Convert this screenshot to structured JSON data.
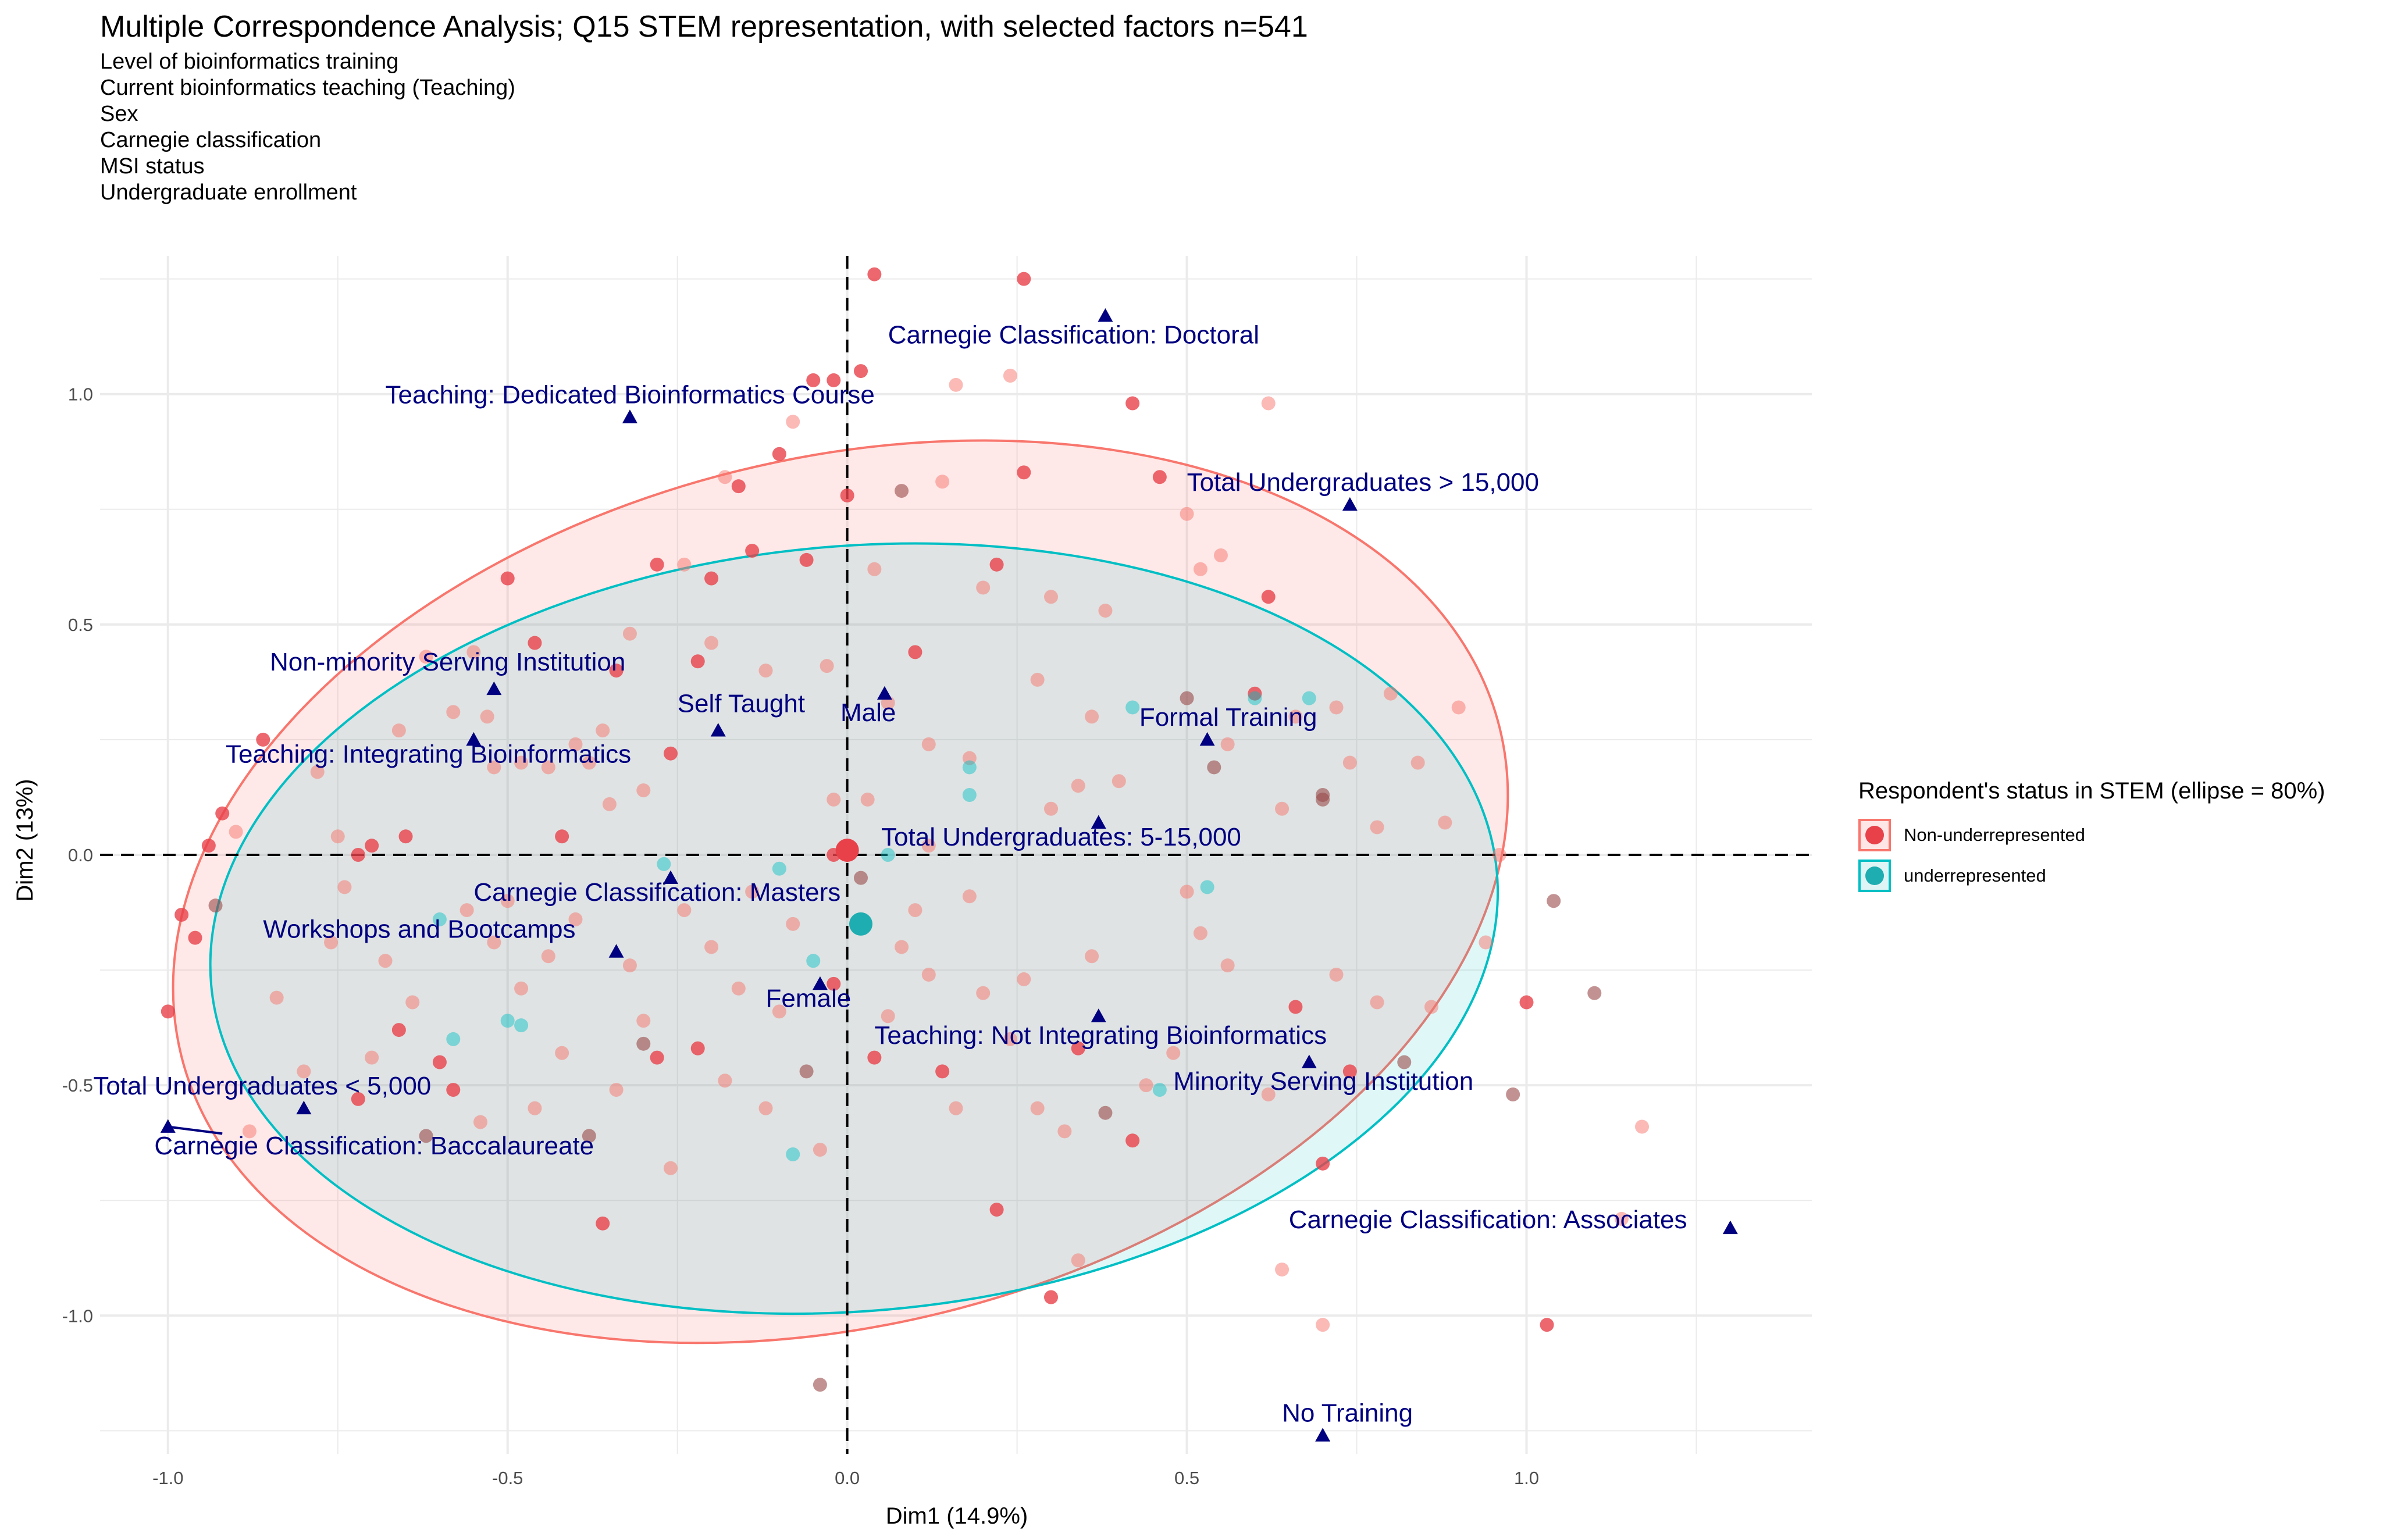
{
  "title": "Multiple Correspondence Analysis; Q15 STEM representation, with selected factors n=541",
  "subtitle_lines": [
    "Level of bioinformatics training",
    "Current bioinformatics teaching (Teaching)",
    "Sex",
    "Carnegie classification",
    "MSI status",
    "Undergraduate enrollment"
  ],
  "colors": {
    "non_underrepresented": "#F8766D",
    "underrepresented": "#00BFC4",
    "variable_points": "#000080",
    "non_underrepresented_point": "#E8414A",
    "underrepresented_point": "#1EADB0"
  },
  "chart_data": {
    "type": "scatter",
    "xlabel": "Dim1 (14.9%)",
    "ylabel": "Dim2 (13%)",
    "xlim": [
      -1.1,
      1.42
    ],
    "ylim": [
      -1.3,
      1.3
    ],
    "x_ticks": [
      -1.0,
      -0.5,
      0.0,
      0.5,
      1.0
    ],
    "x_tick_labels": [
      "-1.0",
      "-0.5",
      "0.0",
      "0.5",
      "1.0"
    ],
    "y_ticks": [
      -1.0,
      -0.5,
      0.0,
      0.5,
      1.0
    ],
    "y_tick_labels": [
      "-1.0",
      "-0.5",
      "0.0",
      "0.5",
      "1.0"
    ],
    "grid": true,
    "reference_lines": {
      "x": 0,
      "y": 0,
      "style": "dashed"
    },
    "legend": {
      "title": "Respondent's status in STEM (ellipse = 80%)",
      "position": "right",
      "entries": [
        "Non-underrepresented",
        "underrepresented"
      ]
    },
    "group_centroids": [
      {
        "group": "Non-underrepresented",
        "x": 0.0,
        "y": 0.01
      },
      {
        "group": "underrepresented",
        "x": 0.02,
        "y": -0.15
      }
    ],
    "ellipses": [
      {
        "group": "Non-underrepresented",
        "cx": -0.01,
        "cy": -0.08,
        "rx": 1.0,
        "ry": 0.94,
        "angle": -14
      },
      {
        "group": "underrepresented",
        "cx": 0.01,
        "cy": -0.16,
        "rx": 0.95,
        "ry": 0.83,
        "angle": -5
      }
    ],
    "variable_categories": [
      {
        "label": "Carnegie Classification: Doctoral",
        "x": 0.38,
        "y": 1.17,
        "lx": 0.06,
        "ly": 1.11,
        "anchor": "start"
      },
      {
        "label": "Teaching: Dedicated Bioinformatics Course",
        "x": -0.32,
        "y": 0.95,
        "lx": -0.68,
        "ly": 0.98,
        "anchor": "start"
      },
      {
        "label": "Total Undergraduates > 15,000",
        "x": 0.74,
        "y": 0.76,
        "lx": 0.5,
        "ly": 0.79,
        "anchor": "start"
      },
      {
        "label": "Non-minority Serving Institution",
        "x": -0.52,
        "y": 0.36,
        "lx": -0.85,
        "ly": 0.4,
        "anchor": "start"
      },
      {
        "label": "Self Taught",
        "x": -0.19,
        "y": 0.27,
        "lx": -0.25,
        "ly": 0.31,
        "anchor": "start"
      },
      {
        "label": "Male",
        "x": 0.055,
        "y": 0.35,
        "lx": -0.01,
        "ly": 0.29,
        "anchor": "start"
      },
      {
        "label": "Formal Training",
        "x": 0.53,
        "y": 0.25,
        "lx": 0.43,
        "ly": 0.28,
        "anchor": "start"
      },
      {
        "label": "Teaching: Integrating Bioinformatics",
        "x": -0.55,
        "y": 0.25,
        "lx": -0.915,
        "ly": 0.2,
        "anchor": "start"
      },
      {
        "label": "Total Undergraduates: 5-15,000",
        "x": 0.37,
        "y": 0.07,
        "lx": 0.05,
        "ly": 0.02,
        "anchor": "start"
      },
      {
        "label": "Carnegie Classification: Masters",
        "x": -0.26,
        "y": -0.05,
        "lx": -0.55,
        "ly": -0.1,
        "anchor": "start"
      },
      {
        "label": "Workshops and Bootcamps",
        "x": -0.34,
        "y": -0.21,
        "lx": -0.86,
        "ly": -0.18,
        "anchor": "start"
      },
      {
        "label": "Female",
        "x": -0.04,
        "y": -0.28,
        "lx": -0.12,
        "ly": -0.33,
        "anchor": "start"
      },
      {
        "label": "Teaching: Not Integrating Bioinformatics",
        "x": 0.37,
        "y": -0.35,
        "lx": 0.04,
        "ly": -0.41,
        "anchor": "start"
      },
      {
        "label": "Minority Serving Institution",
        "x": 0.68,
        "y": -0.45,
        "lx": 0.48,
        "ly": -0.51,
        "anchor": "start"
      },
      {
        "label": "Total Undergraduates < 5,000",
        "x": -1.0,
        "y": -0.59,
        "lx": -1.11,
        "ly": -0.52,
        "anchor": "start"
      },
      {
        "label": "Carnegie Classification: Baccalaureate",
        "x": -0.8,
        "y": -0.55,
        "lx": -1.02,
        "ly": -0.65,
        "anchor": "start"
      },
      {
        "label": "Carnegie Classification: Associates",
        "x": 1.3,
        "y": -0.81,
        "lx": 0.65,
        "ly": -0.81,
        "anchor": "start"
      },
      {
        "label": "No Training",
        "x": 0.7,
        "y": -1.26,
        "lx": 0.64,
        "ly": -1.23,
        "anchor": "start"
      }
    ],
    "individuals": [
      [
        -0.98,
        -0.13,
        1
      ],
      [
        -1.0,
        -0.34,
        1
      ],
      [
        -0.96,
        -0.18,
        1
      ],
      [
        -0.94,
        0.02,
        1
      ],
      [
        -0.92,
        0.09,
        1
      ],
      [
        -0.9,
        0.05,
        0
      ],
      [
        -0.86,
        0.25,
        1
      ],
      [
        -0.93,
        -0.11,
        2
      ],
      [
        -0.78,
        0.18,
        0
      ],
      [
        -0.75,
        0.04,
        0
      ],
      [
        -0.74,
        -0.07,
        0
      ],
      [
        -0.72,
        0.0,
        1
      ],
      [
        -0.7,
        0.02,
        1
      ],
      [
        -0.66,
        0.27,
        0
      ],
      [
        -0.65,
        0.04,
        1
      ],
      [
        -0.62,
        0.43,
        0
      ],
      [
        -0.6,
        -0.45,
        1
      ],
      [
        -0.58,
        0.31,
        0
      ],
      [
        -0.55,
        0.44,
        0
      ],
      [
        -0.53,
        0.3,
        0
      ],
      [
        -0.52,
        0.19,
        0
      ],
      [
        -0.5,
        0.6,
        1
      ],
      [
        -0.48,
        0.2,
        0
      ],
      [
        -0.5,
        -0.1,
        0
      ],
      [
        -0.46,
        0.46,
        1
      ],
      [
        -0.44,
        0.19,
        0
      ],
      [
        -0.42,
        0.04,
        1
      ],
      [
        -0.4,
        0.24,
        0
      ],
      [
        -0.38,
        0.2,
        0
      ],
      [
        -0.36,
        0.27,
        0
      ],
      [
        -0.34,
        0.4,
        1
      ],
      [
        -0.32,
        0.48,
        0
      ],
      [
        -0.3,
        0.14,
        0
      ],
      [
        -0.28,
        0.63,
        1
      ],
      [
        -0.26,
        0.22,
        1
      ],
      [
        -0.24,
        0.63,
        0
      ],
      [
        -0.22,
        0.42,
        1
      ],
      [
        -0.2,
        0.6,
        1
      ],
      [
        -0.18,
        0.82,
        0
      ],
      [
        -0.16,
        0.8,
        1
      ],
      [
        -0.14,
        0.66,
        1
      ],
      [
        -0.12,
        0.4,
        0
      ],
      [
        -0.1,
        0.87,
        1
      ],
      [
        -0.08,
        0.94,
        0
      ],
      [
        -0.06,
        0.64,
        1
      ],
      [
        -0.05,
        1.03,
        1
      ],
      [
        -0.03,
        0.41,
        0
      ],
      [
        -0.02,
        0.12,
        0
      ],
      [
        0.0,
        0.78,
        1
      ],
      [
        0.02,
        1.05,
        1
      ],
      [
        0.04,
        0.62,
        0
      ],
      [
        0.06,
        0.33,
        0
      ],
      [
        0.08,
        0.79,
        2
      ],
      [
        0.1,
        0.44,
        1
      ],
      [
        0.12,
        0.24,
        0
      ],
      [
        0.14,
        0.81,
        0
      ],
      [
        0.16,
        1.02,
        0
      ],
      [
        0.18,
        0.21,
        0
      ],
      [
        0.2,
        0.58,
        0
      ],
      [
        0.22,
        0.63,
        1
      ],
      [
        0.24,
        1.04,
        0
      ],
      [
        0.26,
        0.83,
        1
      ],
      [
        0.28,
        0.38,
        0
      ],
      [
        0.3,
        0.56,
        0
      ],
      [
        0.34,
        0.15,
        0
      ],
      [
        0.36,
        0.3,
        0
      ],
      [
        0.38,
        0.53,
        0
      ],
      [
        0.4,
        0.16,
        0
      ],
      [
        0.42,
        0.98,
        1
      ],
      [
        0.46,
        0.82,
        1
      ],
      [
        0.5,
        0.34,
        2
      ],
      [
        0.52,
        0.62,
        0
      ],
      [
        0.54,
        0.19,
        2
      ],
      [
        0.56,
        0.24,
        0
      ],
      [
        0.6,
        0.35,
        1
      ],
      [
        0.62,
        0.56,
        1
      ],
      [
        0.64,
        0.1,
        0
      ],
      [
        0.66,
        0.3,
        0
      ],
      [
        0.7,
        0.13,
        2
      ],
      [
        0.72,
        0.32,
        0
      ],
      [
        0.74,
        0.2,
        0
      ],
      [
        0.78,
        0.06,
        0
      ],
      [
        0.8,
        0.35,
        0
      ],
      [
        0.84,
        0.2,
        0
      ],
      [
        0.88,
        0.07,
        0
      ],
      [
        0.9,
        0.32,
        0
      ],
      [
        0.96,
        0.0,
        0
      ],
      [
        1.0,
        -0.32,
        1
      ],
      [
        1.04,
        -0.1,
        2
      ],
      [
        1.1,
        -0.3,
        2
      ],
      [
        0.98,
        -0.52,
        2
      ],
      [
        0.94,
        -0.19,
        0
      ],
      [
        0.86,
        -0.33,
        0
      ],
      [
        0.82,
        -0.45,
        2
      ],
      [
        0.78,
        -0.32,
        0
      ],
      [
        0.74,
        -0.47,
        1
      ],
      [
        0.72,
        -0.26,
        0
      ],
      [
        0.7,
        -0.67,
        1
      ],
      [
        0.66,
        -0.33,
        1
      ],
      [
        0.62,
        -0.52,
        0
      ],
      [
        0.56,
        -0.24,
        0
      ],
      [
        0.52,
        -0.17,
        0
      ],
      [
        0.5,
        -0.08,
        0
      ],
      [
        0.48,
        -0.43,
        0
      ],
      [
        0.44,
        -0.5,
        0
      ],
      [
        0.42,
        -0.62,
        1
      ],
      [
        0.38,
        -0.56,
        2
      ],
      [
        0.36,
        -0.22,
        0
      ],
      [
        0.34,
        -0.42,
        1
      ],
      [
        0.32,
        -0.6,
        0
      ],
      [
        0.3,
        -0.96,
        1
      ],
      [
        0.28,
        -0.55,
        0
      ],
      [
        0.26,
        -0.27,
        0
      ],
      [
        0.24,
        -0.4,
        0
      ],
      [
        0.22,
        -0.77,
        1
      ],
      [
        0.2,
        -0.3,
        0
      ],
      [
        0.18,
        -0.09,
        0
      ],
      [
        0.16,
        -0.55,
        0
      ],
      [
        0.14,
        -0.47,
        1
      ],
      [
        0.12,
        -0.26,
        0
      ],
      [
        0.1,
        -0.12,
        0
      ],
      [
        0.06,
        -0.35,
        0
      ],
      [
        0.04,
        -0.44,
        1
      ],
      [
        0.02,
        -0.05,
        2
      ],
      [
        -0.02,
        -0.28,
        1
      ],
      [
        -0.04,
        -0.64,
        0
      ],
      [
        -0.06,
        -0.47,
        2
      ],
      [
        -0.08,
        -0.15,
        0
      ],
      [
        -0.1,
        -0.34,
        0
      ],
      [
        -0.12,
        -0.55,
        0
      ],
      [
        -0.14,
        -0.08,
        0
      ],
      [
        -0.16,
        -0.29,
        0
      ],
      [
        -0.18,
        -0.49,
        0
      ],
      [
        -0.2,
        -0.2,
        0
      ],
      [
        -0.22,
        -0.42,
        1
      ],
      [
        -0.24,
        -0.12,
        0
      ],
      [
        -0.26,
        -0.68,
        0
      ],
      [
        -0.28,
        -0.44,
        1
      ],
      [
        -0.3,
        -0.36,
        0
      ],
      [
        -0.32,
        -0.24,
        0
      ],
      [
        -0.34,
        -0.51,
        0
      ],
      [
        -0.36,
        -0.8,
        1
      ],
      [
        -0.38,
        -0.61,
        2
      ],
      [
        -0.4,
        -0.14,
        0
      ],
      [
        -0.42,
        -0.43,
        0
      ],
      [
        -0.44,
        -0.22,
        0
      ],
      [
        -0.46,
        -0.55,
        0
      ],
      [
        -0.48,
        -0.29,
        0
      ],
      [
        -0.5,
        -0.36,
        3
      ],
      [
        -0.52,
        -0.19,
        0
      ],
      [
        -0.54,
        -0.58,
        0
      ],
      [
        -0.56,
        -0.12,
        0
      ],
      [
        -0.58,
        -0.51,
        1
      ],
      [
        -0.62,
        -0.61,
        2
      ],
      [
        -0.64,
        -0.32,
        0
      ],
      [
        -0.66,
        -0.38,
        1
      ],
      [
        -0.68,
        -0.23,
        0
      ],
      [
        -0.7,
        -0.44,
        0
      ],
      [
        -0.72,
        -0.53,
        1
      ],
      [
        -0.76,
        -0.19,
        0
      ],
      [
        -0.8,
        -0.47,
        0
      ],
      [
        -0.84,
        -0.31,
        0
      ],
      [
        -0.88,
        -0.6,
        0
      ],
      [
        -0.6,
        -0.14,
        3
      ],
      [
        -0.58,
        -0.4,
        3
      ],
      [
        -0.27,
        -0.02,
        3
      ],
      [
        -0.1,
        -0.03,
        3
      ],
      [
        -0.05,
        -0.23,
        3
      ],
      [
        -0.08,
        -0.65,
        3
      ],
      [
        0.06,
        0.0,
        3
      ],
      [
        0.18,
        0.19,
        3
      ],
      [
        0.6,
        0.34,
        3
      ],
      [
        0.68,
        0.34,
        3
      ],
      [
        0.42,
        0.32,
        3
      ],
      [
        0.18,
        0.13,
        3
      ],
      [
        0.53,
        -0.07,
        3
      ],
      [
        0.46,
        -0.51,
        3
      ],
      [
        -0.48,
        -0.37,
        3
      ],
      [
        0.7,
        0.12,
        2
      ],
      [
        -0.3,
        -0.41,
        2
      ],
      [
        0.03,
        0.12,
        0
      ],
      [
        -0.02,
        0.0,
        1
      ],
      [
        0.08,
        -0.2,
        0
      ],
      [
        0.12,
        0.02,
        0
      ],
      [
        -0.2,
        0.46,
        0
      ],
      [
        0.3,
        0.1,
        0
      ],
      [
        0.5,
        0.74,
        0
      ],
      [
        0.55,
        0.65,
        0
      ],
      [
        -0.35,
        0.11,
        0
      ],
      [
        0.64,
        -0.9,
        0
      ],
      [
        0.7,
        -1.02,
        0
      ],
      [
        1.14,
        -0.79,
        0
      ],
      [
        1.17,
        -0.59,
        0
      ],
      [
        1.03,
        -1.02,
        1
      ],
      [
        -0.04,
        -1.15,
        2
      ],
      [
        0.26,
        1.25,
        1
      ],
      [
        0.04,
        1.26,
        1
      ],
      [
        -0.02,
        1.03,
        1
      ],
      [
        0.62,
        0.98,
        0
      ],
      [
        0.34,
        -0.88,
        0
      ]
    ]
  }
}
